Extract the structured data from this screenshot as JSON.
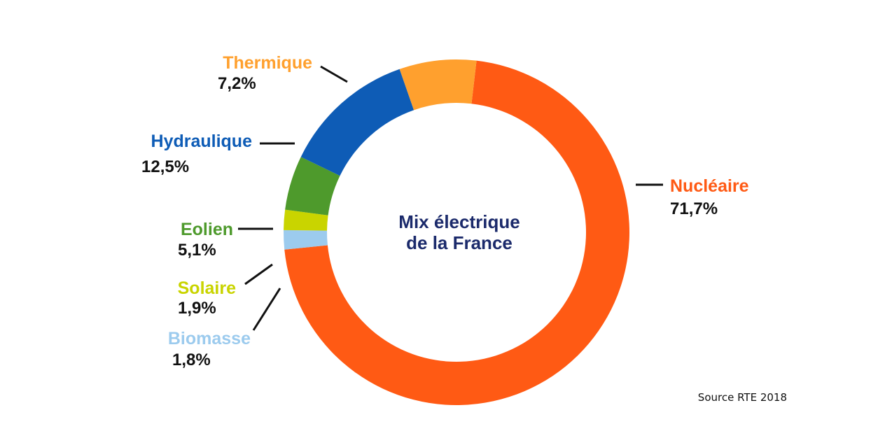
{
  "chart_data": {
    "type": "pie",
    "title_lines": [
      "Mix électrique",
      "de la France"
    ],
    "source": "Source RTE 2018",
    "slices": [
      {
        "name": "Nucléaire",
        "value": 71.7,
        "label": "71,7%",
        "color": "#ff5a14"
      },
      {
        "name": "Biomasse",
        "value": 1.8,
        "label": "1,8%",
        "color": "#9ccbee"
      },
      {
        "name": "Solaire",
        "value": 1.9,
        "label": "1,9%",
        "color": "#c9d400"
      },
      {
        "name": "Eolien",
        "value": 5.1,
        "label": "5,1%",
        "color": "#4e9a2c"
      },
      {
        "name": "Hydraulique",
        "value": 12.5,
        "label": "12,5%",
        "color": "#0e5cb6"
      },
      {
        "name": "Thermique",
        "value": 7.2,
        "label": "7,2%",
        "color": "#ffa02e"
      }
    ]
  }
}
